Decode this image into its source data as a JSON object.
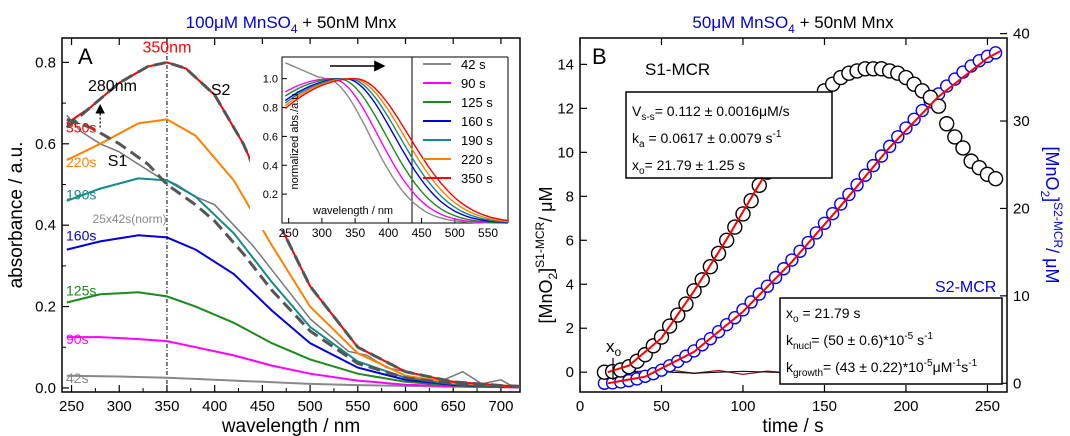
{
  "chart_data": [
    {
      "type": "line",
      "panel_label": "A",
      "title_parts": [
        "100",
        "μM MnSO",
        "4",
        " + 50nM Mnx"
      ],
      "xlabel": "wavelength / nm",
      "ylabel": "absorbance / a.u.",
      "xlim": [
        240,
        720
      ],
      "ylim": [
        -0.01,
        0.86
      ],
      "xticks": [
        250,
        300,
        350,
        400,
        450,
        500,
        550,
        600,
        650,
        700
      ],
      "yticks": [
        0.0,
        0.2,
        0.4,
        0.6,
        0.8
      ],
      "ytick_labels": [
        "0.0",
        "0.2",
        "0.4",
        "0.6",
        "0.8"
      ],
      "colors": {
        "42s": "#888888",
        "90s": "#ff00ff",
        "125s": "#1a8a1a",
        "160s": "#0000dd",
        "190s": "#138a8a",
        "220s": "#ff8000",
        "350s": "#ff0000",
        "fit": "#555555"
      },
      "series": [
        {
          "name": "42s",
          "color": "#888888",
          "x": [
            245,
            300,
            350,
            400,
            450,
            500,
            550,
            600,
            650,
            700,
            720
          ],
          "y": [
            0.03,
            0.028,
            0.025,
            0.02,
            0.015,
            0.01,
            0.007,
            0.005,
            0.003,
            0.002,
            0.001
          ]
        },
        {
          "name": "90s",
          "color": "#ff00ff",
          "x": [
            245,
            280,
            320,
            350,
            380,
            420,
            460,
            500,
            550,
            600,
            650,
            700,
            720
          ],
          "y": [
            0.125,
            0.125,
            0.12,
            0.115,
            0.1,
            0.08,
            0.055,
            0.035,
            0.018,
            0.008,
            0.004,
            0.002,
            0.001
          ]
        },
        {
          "name": "125s",
          "color": "#1a8a1a",
          "x": [
            245,
            280,
            320,
            350,
            380,
            420,
            460,
            500,
            550,
            600,
            650,
            700,
            720
          ],
          "y": [
            0.21,
            0.23,
            0.235,
            0.225,
            0.2,
            0.16,
            0.11,
            0.07,
            0.035,
            0.015,
            0.006,
            0.003,
            0.002
          ]
        },
        {
          "name": "160s",
          "color": "#0000dd",
          "x": [
            245,
            280,
            320,
            350,
            380,
            420,
            460,
            500,
            550,
            600,
            650,
            700,
            720
          ],
          "y": [
            0.34,
            0.36,
            0.375,
            0.37,
            0.34,
            0.28,
            0.19,
            0.11,
            0.05,
            0.02,
            0.008,
            0.003,
            0.002
          ]
        },
        {
          "name": "190s",
          "color": "#138a8a",
          "x": [
            245,
            280,
            320,
            350,
            380,
            420,
            460,
            500,
            550,
            600,
            650,
            700,
            720
          ],
          "y": [
            0.46,
            0.49,
            0.515,
            0.51,
            0.47,
            0.38,
            0.26,
            0.15,
            0.065,
            0.025,
            0.01,
            0.004,
            0.002
          ]
        },
        {
          "name": "220s",
          "color": "#ff8000",
          "x": [
            245,
            280,
            320,
            350,
            380,
            420,
            460,
            500,
            550,
            600,
            650,
            700,
            720
          ],
          "y": [
            0.56,
            0.6,
            0.65,
            0.66,
            0.62,
            0.51,
            0.35,
            0.2,
            0.085,
            0.03,
            0.012,
            0.005,
            0.003
          ]
        },
        {
          "name": "350s",
          "color": "#ff0000",
          "x": [
            245,
            270,
            300,
            330,
            350,
            370,
            400,
            430,
            460,
            500,
            550,
            600,
            650,
            700,
            720
          ],
          "y": [
            0.65,
            0.69,
            0.75,
            0.79,
            0.8,
            0.785,
            0.72,
            0.6,
            0.44,
            0.25,
            0.1,
            0.04,
            0.015,
            0.006,
            0.004
          ]
        }
      ],
      "fit_curves": [
        {
          "name": "S2",
          "x": [
            245,
            270,
            300,
            330,
            350,
            370,
            400,
            430,
            460,
            500,
            550,
            600,
            650,
            700,
            720
          ],
          "y": [
            0.64,
            0.69,
            0.75,
            0.79,
            0.8,
            0.785,
            0.72,
            0.6,
            0.44,
            0.25,
            0.1,
            0.04,
            0.015,
            0.006,
            0.004
          ]
        },
        {
          "name": "S1",
          "x": [
            245,
            270,
            300,
            330,
            350,
            380,
            400,
            430,
            460,
            500,
            550,
            600,
            650,
            700
          ],
          "y": [
            0.66,
            0.64,
            0.6,
            0.55,
            0.5,
            0.45,
            0.41,
            0.33,
            0.24,
            0.14,
            0.06,
            0.025,
            0.01,
            0.004
          ]
        }
      ],
      "norm_42s": {
        "x": [
          245,
          260,
          280,
          300,
          320,
          340,
          360,
          380,
          400,
          420,
          440,
          460,
          480,
          500,
          520,
          540,
          560,
          580,
          600,
          620,
          640,
          660,
          680,
          700,
          715
        ],
        "y": [
          0.67,
          0.63,
          0.6,
          0.58,
          0.55,
          0.52,
          0.5,
          0.47,
          0.45,
          0.4,
          0.35,
          0.29,
          0.23,
          0.17,
          0.13,
          0.09,
          0.08,
          0.05,
          0.04,
          0.03,
          0.02,
          0.04,
          0.01,
          0.02,
          0.0
        ]
      },
      "vline_x": 350,
      "annotations": {
        "peak350": "350nm",
        "peak280": "280nm",
        "s1": "S1",
        "s2": "S2",
        "norm": "25x42s(norm)",
        "labels": [
          "350s",
          "220s",
          "190s",
          "160s",
          "125s",
          "90s",
          "42s"
        ]
      },
      "inset": {
        "xlabel": "wavelength / nm",
        "ylabel": "normalized abs./a.u.",
        "xlim": [
          240,
          580
        ],
        "ylim": [
          0.0,
          1.15
        ],
        "xticks": [
          250,
          300,
          350,
          400,
          450,
          500,
          550
        ],
        "yticks": [
          0.0,
          0.2,
          0.4,
          0.6,
          0.8,
          1.0
        ],
        "ytick_labels": [
          "",
          "0.2",
          "0.4",
          "0.6",
          "0.8",
          "1.0"
        ],
        "legend": [
          {
            "label": "42 s",
            "color": "#888888"
          },
          {
            "label": "90 s",
            "color": "#ff00ff"
          },
          {
            "label": "125 s",
            "color": "#1a8a1a"
          },
          {
            "label": "160 s",
            "color": "#0000dd"
          },
          {
            "label": "190 s",
            "color": "#138a8a"
          },
          {
            "label": "220 s",
            "color": "#ff8000"
          },
          {
            "label": "350 s",
            "color": "#ff0000"
          }
        ],
        "peak_positions": [
          305,
          315,
          325,
          335,
          340,
          345,
          350
        ]
      }
    },
    {
      "type": "scatter",
      "panel_label": "B",
      "title_parts": [
        "50",
        "μM MnSO",
        "4",
        " + 50nM Mnx"
      ],
      "xlabel": "time / s",
      "xlim": [
        0,
        262
      ],
      "ylim_left": [
        -0.9,
        15.2
      ],
      "ylim_right": [
        -1,
        39.5
      ],
      "xticks": [
        0,
        50,
        100,
        150,
        200,
        250
      ],
      "yticks_left": [
        0,
        2,
        4,
        6,
        8,
        10,
        12,
        14
      ],
      "yticks_right": [
        0,
        10,
        20,
        30,
        40
      ],
      "colors": {
        "s1": "#000000",
        "s2": "#0000ff",
        "fit": "#ff0000",
        "diff": "#8b1a1a"
      },
      "s1_points": {
        "x": [
          15,
          20,
          25,
          30,
          35,
          40,
          45,
          50,
          55,
          60,
          65,
          70,
          75,
          80,
          85,
          90,
          95,
          100,
          105,
          110,
          115,
          120,
          125,
          130,
          135,
          140,
          145,
          150,
          155,
          160,
          165,
          170,
          175,
          180,
          185,
          190,
          195,
          200,
          205,
          210,
          215,
          220,
          225,
          230,
          235,
          240,
          245,
          250,
          255
        ],
        "y": [
          0,
          0.03,
          0.1,
          0.25,
          0.5,
          0.8,
          1.2,
          1.6,
          2.1,
          2.6,
          3.1,
          3.7,
          4.2,
          4.8,
          5.4,
          6.0,
          6.6,
          7.2,
          7.8,
          8.5,
          9.1,
          9.7,
          10.3,
          10.9,
          11.4,
          11.9,
          12.4,
          12.8,
          13.1,
          13.4,
          13.6,
          13.7,
          13.8,
          13.8,
          13.8,
          13.7,
          13.6,
          13.4,
          13.1,
          12.8,
          12.5,
          12.1,
          11.3,
          10.7,
          10.2,
          9.6,
          9.3,
          9.0,
          8.8
        ]
      },
      "s2_points": {
        "x": [
          15,
          20,
          25,
          30,
          35,
          40,
          45,
          50,
          55,
          60,
          65,
          70,
          75,
          80,
          85,
          90,
          95,
          100,
          105,
          110,
          115,
          120,
          125,
          130,
          135,
          140,
          145,
          150,
          155,
          160,
          165,
          170,
          175,
          180,
          185,
          190,
          195,
          200,
          205,
          210,
          215,
          220,
          225,
          230,
          235,
          240,
          245,
          250,
          255
        ],
        "y": [
          0,
          0.05,
          0.15,
          0.3,
          0.5,
          0.8,
          1.1,
          1.5,
          2.0,
          2.5,
          3.1,
          3.7,
          4.4,
          5.1,
          5.9,
          6.7,
          7.5,
          8.4,
          9.3,
          10.2,
          11.1,
          12.1,
          13.1,
          14.1,
          15.1,
          16.1,
          17.2,
          18.3,
          19.4,
          20.5,
          21.6,
          22.7,
          23.8,
          24.9,
          26.0,
          27.1,
          28.2,
          29.2,
          30.2,
          31.2,
          32.2,
          33.1,
          34.0,
          34.8,
          35.6,
          36.3,
          36.9,
          37.4,
          37.8
        ]
      },
      "fit_s1": {
        "x": [
          17,
          30,
          50,
          70,
          90,
          110,
          130,
          137
        ],
        "y": [
          0,
          0.3,
          1.55,
          3.7,
          6.05,
          8.55,
          10.9,
          11.7
        ]
      },
      "fit_s2": {
        "x": [
          17,
          40,
          70,
          100,
          130,
          160,
          190,
          220,
          250,
          258
        ],
        "y": [
          0,
          0.75,
          3.6,
          8.2,
          13.9,
          20.3,
          27.0,
          32.8,
          37.2,
          38.0
        ]
      },
      "diff_s1": {
        "x": [
          17,
          30,
          40,
          55,
          70,
          85,
          100,
          115,
          130,
          137
        ],
        "y": [
          0,
          0.05,
          -0.08,
          0.1,
          -0.05,
          0.08,
          -0.1,
          0.05,
          -0.05,
          -0.1
        ]
      },
      "diff_s2": {
        "x": [
          17,
          40,
          70,
          100,
          130,
          160,
          190,
          220
        ],
        "y": [
          0,
          0.05,
          -0.05,
          0.04,
          -0.03,
          0.05,
          -0.02,
          0.03
        ]
      },
      "annotations": {
        "s1_label": "S1-MCR",
        "s2_label": "S2-MCR",
        "xo_label": "x",
        "xo_sub": "o"
      },
      "box1": {
        "line1_main": "V",
        "line1_sub": "s-s",
        "line1_rest": "= 0.112 ± 0.0016μM/s",
        "line2_main": "k",
        "line2_sub": "a",
        "line2_rest": " = 0.0617 ± 0.0079 s",
        "line2_sup": "-1",
        "line3_main": "x",
        "line3_sub": "o",
        "line3_rest": "= 21.79 ± 1.25 s"
      },
      "box2": {
        "line1_main": "x",
        "line1_sub": "o",
        "line1_rest": " = 21.79 s",
        "line2_main": "k",
        "line2_sub": "nucl",
        "line2_rest": "= (50 ± 0.6)*10",
        "line2_sup1": "-5",
        "line2_rest2": " s",
        "line2_sup2": "-1",
        "line3_main": "k",
        "line3_sub": "growth",
        "line3_rest": "= (43 ± 0.22)*10",
        "line3_sup1": "-5",
        "line3_rest2": "μM",
        "line3_sup2": "-1",
        "line3_rest3": "s",
        "line3_sup3": "-1"
      },
      "ylabel_left": {
        "main": "[MnO",
        "sub": "2",
        "close": "]",
        "sup": "S1-MCR",
        "rest": "/ μM"
      },
      "ylabel_right": {
        "main": "[MnO",
        "sub": "2",
        "close": "]",
        "sup": "S2-MCR",
        "rest": "/ μM"
      }
    }
  ]
}
